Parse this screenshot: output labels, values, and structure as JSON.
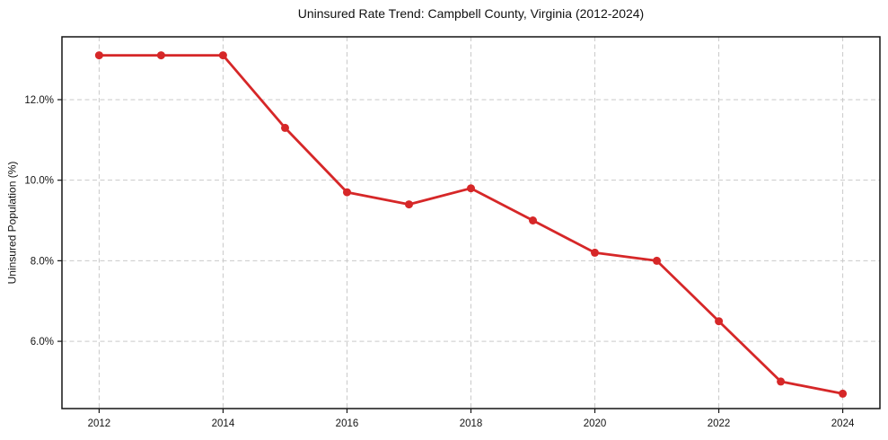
{
  "chart_data": {
    "type": "line",
    "title": "Uninsured Rate Trend: Campbell County, Virginia (2012-2024)",
    "xlabel": "",
    "ylabel": "Uninsured Population (%)",
    "x": [
      2012,
      2013,
      2014,
      2015,
      2016,
      2017,
      2018,
      2019,
      2020,
      2021,
      2022,
      2023,
      2024
    ],
    "values": [
      13.1,
      13.1,
      13.1,
      11.3,
      9.7,
      9.4,
      9.8,
      9.0,
      8.2,
      8.0,
      6.5,
      5.0,
      4.7
    ],
    "line_color": "#d62728",
    "marker": "circle",
    "marker_radius": 4.5,
    "line_width": 2.8,
    "grid": true,
    "grid_style": "dashed",
    "legend": "none",
    "xlim": [
      2011.4,
      2024.6
    ],
    "ylim": [
      4.33,
      13.56
    ],
    "xticks": {
      "values": [
        2012,
        2014,
        2016,
        2018,
        2020,
        2022,
        2024
      ],
      "labels": [
        "2012",
        "2014",
        "2016",
        "2018",
        "2020",
        "2022",
        "2024"
      ]
    },
    "yticks": {
      "values": [
        6,
        8,
        10,
        12
      ],
      "labels": [
        "6.0%",
        "8.0%",
        "10.0%",
        "12.0%"
      ]
    }
  }
}
